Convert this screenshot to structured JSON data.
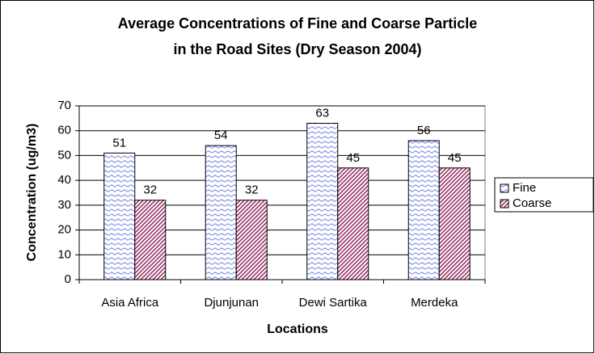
{
  "chart_data": {
    "type": "bar",
    "title": [
      "Average Concentrations of Fine and Coarse Particle",
      "in the Road Sites (Dry Season 2004)"
    ],
    "x_label": "Locations",
    "y_label": "Concentration (ug/m3)",
    "categories": [
      "Asia Africa",
      "Djunjunan",
      "Dewi Sartika",
      "Merdeka"
    ],
    "series": [
      {
        "name": "Fine",
        "color": "#7f8fe6",
        "values": [
          51,
          54,
          63,
          56
        ]
      },
      {
        "name": "Coarse",
        "color": "#993366",
        "values": [
          32,
          32,
          45,
          45
        ]
      }
    ],
    "ylim": [
      0,
      70
    ],
    "yticks": [
      0,
      10,
      20,
      30,
      40,
      50,
      60,
      70
    ],
    "grid": true,
    "legend": "right"
  }
}
